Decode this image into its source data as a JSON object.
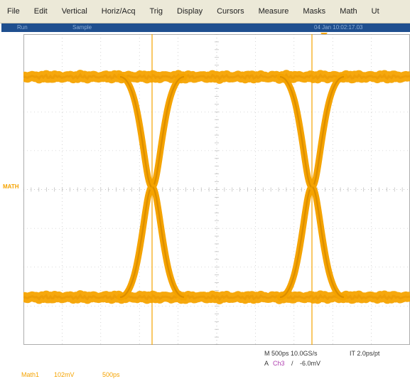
{
  "menu": {
    "items": [
      "File",
      "Edit",
      "Vertical",
      "Horiz/Acq",
      "Trig",
      "Display",
      "Cursors",
      "Measure",
      "Masks",
      "Math",
      "Ut"
    ]
  },
  "status": {
    "left_a": "Run",
    "left_b": "Sample",
    "right": "04 Jan 10:02:17.03"
  },
  "colors": {
    "trace": "#f5a300",
    "grid": "#b8b8b8",
    "status_bar": "#1f4f8f"
  },
  "channel_marker": "MATH",
  "readout": {
    "horizontal": "M 500ps 10.0GS/s",
    "it": "IT 2.0ps/pt",
    "trigger_prefix": "A",
    "trigger_source": "Ch3",
    "trigger_slope": "/",
    "trigger_level": "-6.0mV",
    "math_label": "Math1",
    "math_scale": "102mV",
    "math_time": "500ps"
  }
}
